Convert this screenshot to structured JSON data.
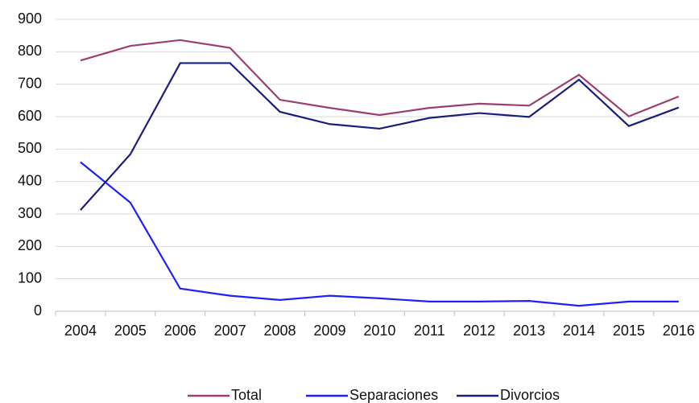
{
  "chart_data": {
    "type": "line",
    "categories": [
      "2004",
      "2005",
      "2006",
      "2007",
      "2008",
      "2009",
      "2010",
      "2011",
      "2012",
      "2013",
      "2014",
      "2015",
      "2016"
    ],
    "series": [
      {
        "name": "Total",
        "color": "#9c3f70",
        "values": [
          773,
          818,
          836,
          812,
          652,
          627,
          605,
          627,
          640,
          634,
          729,
          601,
          662
        ]
      },
      {
        "name": "Separaciones",
        "color": "#1f1fff",
        "values": [
          460,
          335,
          70,
          48,
          35,
          48,
          40,
          30,
          30,
          32,
          17,
          30,
          30
        ]
      },
      {
        "name": "Divorcios",
        "color": "#1c1c7e",
        "values": [
          312,
          484,
          765,
          765,
          615,
          577,
          563,
          596,
          611,
          599,
          714,
          571,
          628
        ]
      }
    ],
    "ylim": [
      0,
      900
    ],
    "yticks": [
      0,
      100,
      200,
      300,
      400,
      500,
      600,
      700,
      800,
      900
    ],
    "grid": true,
    "legend": "bottom"
  }
}
